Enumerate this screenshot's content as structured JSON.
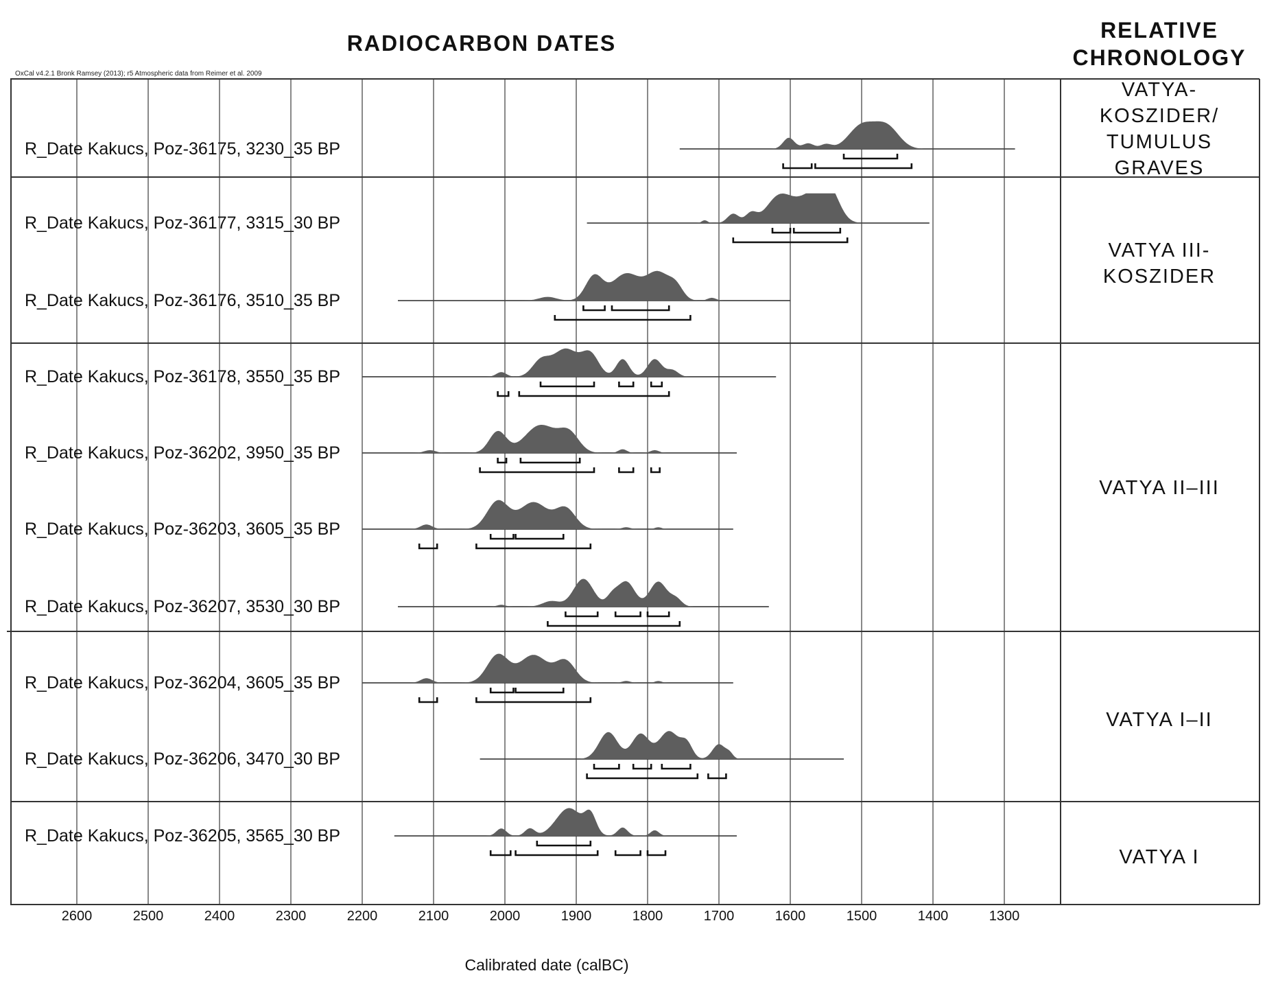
{
  "header": {
    "left_title": "RADIOCARBON DATES",
    "right_title_line1": "RELATIVE",
    "right_title_line2": "CHRONOLOGY",
    "credit": "OxCal v4.2.1 Bronk Ramsey (2013); r5 Atmospheric data from Reimer et al. 2009"
  },
  "colors": {
    "density": "#5e5e5e",
    "frame": "#333333",
    "grid": "#555555",
    "text": "#111111"
  },
  "chart_data": {
    "type": "area",
    "xlabel": "Calibrated date (calBC)",
    "x_ticks": [
      2600,
      2500,
      2400,
      2300,
      2200,
      2100,
      2000,
      1900,
      1800,
      1700,
      1600,
      1500,
      1400,
      1300
    ],
    "grid": true,
    "dates": [
      {
        "label": "R_Date Kakucs, Poz-36175, 3230_35 BP",
        "range_line": [
          1755,
          1285
        ],
        "peaks": [
          [
            1602,
            1.2,
            8
          ],
          [
            1575,
            0.6,
            8
          ],
          [
            1550,
            0.5,
            8
          ],
          [
            1500,
            2.5,
            18
          ],
          [
            1465,
            2.4,
            17
          ]
        ],
        "bars_68": [
          [
            1525,
            1450
          ]
        ],
        "bars_95": [
          [
            1610,
            1570
          ],
          [
            1565,
            1430
          ]
        ]
      },
      {
        "label": "R_Date Kakucs, Poz-36177, 3315_30 BP",
        "range_line": [
          1885,
          1405
        ],
        "peaks": [
          [
            1720,
            0.3,
            4
          ],
          [
            1680,
            1.0,
            8
          ],
          [
            1655,
            1.0,
            8
          ],
          [
            1615,
            2.9,
            18
          ],
          [
            1570,
            2.9,
            20
          ],
          [
            1545,
            2.9,
            14
          ]
        ],
        "bars_68": [
          [
            1625,
            1600
          ],
          [
            1595,
            1530
          ]
        ],
        "bars_95": [
          [
            1680,
            1520
          ]
        ]
      },
      {
        "label": "R_Date Kakucs, Poz-36176, 3510_35 BP",
        "range_line": [
          2150,
          1600
        ],
        "peaks": [
          [
            1940,
            0.4,
            12
          ],
          [
            1875,
            2.6,
            12
          ],
          [
            1830,
            2.9,
            20
          ],
          [
            1785,
            2.9,
            16
          ],
          [
            1760,
            1.3,
            10
          ],
          [
            1710,
            0.3,
            6
          ]
        ],
        "bars_68": [
          [
            1890,
            1860
          ],
          [
            1850,
            1770
          ]
        ],
        "bars_95": [
          [
            1930,
            1740
          ]
        ]
      },
      {
        "label": "R_Date Kakucs, Poz-36178, 3550_35 BP",
        "range_line": [
          2200,
          1620
        ],
        "peaks": [
          [
            2005,
            0.5,
            7
          ],
          [
            1950,
            1.6,
            12
          ],
          [
            1915,
            3.0,
            18
          ],
          [
            1880,
            2.3,
            12
          ],
          [
            1835,
            1.9,
            9
          ],
          [
            1790,
            1.9,
            10
          ],
          [
            1765,
            0.7,
            8
          ]
        ],
        "bars_68": [
          [
            1950,
            1875
          ],
          [
            1840,
            1820
          ],
          [
            1795,
            1780
          ]
        ],
        "bars_95": [
          [
            2010,
            1995
          ],
          [
            1980,
            1770
          ]
        ]
      },
      {
        "label": "R_Date Kakucs, Poz-36202, 3950_35 BP",
        "range_line": [
          2200,
          1675
        ],
        "peaks": [
          [
            2105,
            0.3,
            8
          ],
          [
            2010,
            2.3,
            12
          ],
          [
            1950,
            3.0,
            22
          ],
          [
            1910,
            2.0,
            14
          ],
          [
            1835,
            0.4,
            6
          ],
          [
            1790,
            0.3,
            6
          ]
        ],
        "bars_68": [
          [
            2010,
            1998
          ],
          [
            1978,
            1895
          ]
        ],
        "bars_95": [
          [
            2035,
            1875
          ],
          [
            1840,
            1820
          ],
          [
            1795,
            1783
          ]
        ]
      },
      {
        "label": "R_Date Kakucs, Poz-36203, 3605_35 BP",
        "range_line": [
          2200,
          1680
        ],
        "peaks": [
          [
            2110,
            0.5,
            8
          ],
          [
            2010,
            3.0,
            15
          ],
          [
            1960,
            2.9,
            20
          ],
          [
            1915,
            2.2,
            14
          ],
          [
            1830,
            0.2,
            6
          ],
          [
            1785,
            0.2,
            5
          ]
        ],
        "bars_68": [
          [
            2020,
            1988
          ],
          [
            1985,
            1918
          ]
        ],
        "bars_95": [
          [
            2120,
            2095
          ],
          [
            2040,
            1880
          ]
        ]
      },
      {
        "label": "R_Date Kakucs, Poz-36207, 3530_30 BP",
        "range_line": [
          2150,
          1630
        ],
        "peaks": [
          [
            2005,
            0.2,
            6
          ],
          [
            1935,
            0.6,
            12
          ],
          [
            1890,
            3.0,
            14
          ],
          [
            1850,
            1.0,
            8
          ],
          [
            1830,
            2.7,
            12
          ],
          [
            1785,
            2.7,
            12
          ],
          [
            1760,
            0.8,
            8
          ]
        ],
        "bars_68": [
          [
            1915,
            1870
          ],
          [
            1845,
            1810
          ],
          [
            1800,
            1770
          ]
        ],
        "bars_95": [
          [
            1940,
            1755
          ]
        ]
      },
      {
        "label": "R_Date Kakucs, Poz-36204, 3605_35 BP",
        "range_line": [
          2200,
          1680
        ],
        "peaks": [
          [
            2110,
            0.5,
            8
          ],
          [
            2010,
            3.0,
            15
          ],
          [
            1960,
            3.0,
            20
          ],
          [
            1915,
            2.3,
            14
          ],
          [
            1830,
            0.2,
            6
          ],
          [
            1785,
            0.2,
            5
          ]
        ],
        "bars_68": [
          [
            2020,
            1988
          ],
          [
            1985,
            1918
          ]
        ],
        "bars_95": [
          [
            2120,
            2095
          ],
          [
            2040,
            1880
          ]
        ]
      },
      {
        "label": "R_Date Kakucs, Poz-36206, 3470_30 BP",
        "range_line": [
          2035,
          1525
        ],
        "peaks": [
          [
            1855,
            2.9,
            13
          ],
          [
            1810,
            2.7,
            12
          ],
          [
            1770,
            3.0,
            14
          ],
          [
            1745,
            1.5,
            8
          ],
          [
            1700,
            1.6,
            9
          ],
          [
            1685,
            0.5,
            5
          ]
        ],
        "bars_68": [
          [
            1875,
            1840
          ],
          [
            1820,
            1795
          ],
          [
            1780,
            1740
          ]
        ],
        "bars_95": [
          [
            1885,
            1730
          ],
          [
            1715,
            1690
          ]
        ]
      },
      {
        "label": "R_Date Kakucs, Poz-36205, 3565_30 BP",
        "range_line": [
          2155,
          1675
        ],
        "peaks": [
          [
            2005,
            0.8,
            7
          ],
          [
            1965,
            0.8,
            7
          ],
          [
            1910,
            3.0,
            18
          ],
          [
            1880,
            2.0,
            8
          ],
          [
            1835,
            0.9,
            7
          ],
          [
            1790,
            0.6,
            6
          ]
        ],
        "bars_68": [
          [
            1955,
            1880
          ]
        ],
        "bars_95": [
          [
            2020,
            1992
          ],
          [
            1985,
            1870
          ],
          [
            1845,
            1810
          ],
          [
            1800,
            1775
          ]
        ]
      }
    ]
  },
  "phases": [
    {
      "lines": [
        "VATYA-",
        "KOSZIDER/",
        "TUMULUS",
        "GRAVES"
      ]
    },
    {
      "lines": [
        "VATYA III-",
        "KOSZIDER"
      ]
    },
    {
      "lines": [
        "VATYA II–III"
      ]
    },
    {
      "lines": [
        "VATYA I–II"
      ]
    },
    {
      "lines": [
        "VATYA I"
      ]
    }
  ]
}
